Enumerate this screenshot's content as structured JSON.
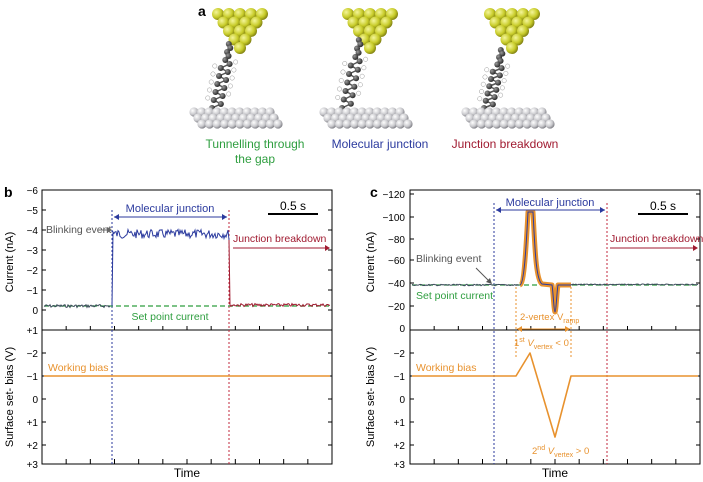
{
  "panel_a": {
    "letter": "a",
    "captions": [
      {
        "lines": [
          "Tunnelling through",
          "the gap"
        ],
        "color": "#2e9e3f"
      },
      {
        "lines": [
          "Molecular junction"
        ],
        "color": "#2b3a9e"
      },
      {
        "lines": [
          "Junction breakdown"
        ],
        "color": "#a01a30"
      }
    ]
  },
  "panel_b": {
    "letter": "b",
    "ylabel_top": "Current (nA)",
    "ylabel_bottom": "Surface set- bias (V)",
    "yticks_top": [
      "−6",
      "−5",
      "−4",
      "−3",
      "−2",
      "−1",
      "0",
      "+1"
    ],
    "yticks_bottom": [
      "−2",
      "−1",
      "0",
      "+1",
      "+2",
      "+3"
    ],
    "xlabel": "Time",
    "scale_bar": "0.5 s",
    "labels": {
      "molecular_junction": "Molecular junction",
      "blinking_event": "Blinking event",
      "junction_breakdown": "Junction breakdown",
      "set_point_current": "Set point current",
      "working_bias": "Working bias"
    }
  },
  "panel_c": {
    "letter": "c",
    "ylabel_top": "Current (nA)",
    "ylabel_bottom": "Surface set- bias (V)",
    "yticks_top": [
      "−120",
      "−100",
      "−80",
      "−60",
      "−40",
      "−20",
      "0",
      "+30",
      "+60"
    ],
    "yticks_bottom": [
      "−2",
      "−1",
      "0",
      "+1",
      "+2",
      "+3"
    ],
    "xlabel": "Time",
    "scale_bar": "0.5 s",
    "labels": {
      "molecular_junction": "Molecular junction",
      "blinking_event": "Blinking event",
      "junction_breakdown": "Junction breakdown",
      "set_point_current": "Set point current",
      "working_bias": "Working bias",
      "two_vertex": "2-vertex V",
      "two_vertex_sub": "ramp",
      "first_vertex_pre": "1",
      "first_vertex_sup": "st",
      "first_vertex_v": " V",
      "first_vertex_sub": "vertex",
      "first_vertex_post": " < 0",
      "second_vertex_pre": "2",
      "second_vertex_sup": "nd",
      "second_vertex_v": " V",
      "second_vertex_sub": "vertex",
      "second_vertex_post": " > 0"
    }
  },
  "colors": {
    "green": "#2e9e3f",
    "blue": "#2b3a9e",
    "red": "#a01a30",
    "orange": "#e8922e",
    "gray": "#666666"
  }
}
